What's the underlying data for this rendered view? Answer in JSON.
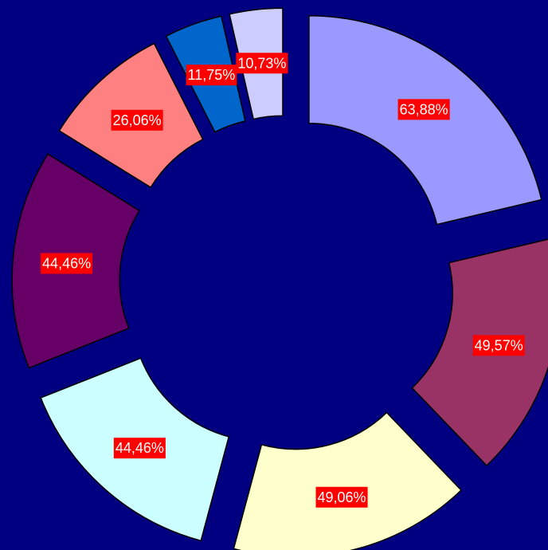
{
  "chart_data": {
    "type": "donut",
    "values": [
      63.88,
      49.57,
      49.06,
      44.46,
      44.46,
      26.06,
      11.75,
      10.73
    ],
    "value_labels": [
      "63,88%",
      "49,57%",
      "49,06%",
      "44,46%",
      "44,46%",
      "26,06%",
      "11,75%",
      "10,73%"
    ],
    "colors": [
      "#9999ff",
      "#993366",
      "#ffffcc",
      "#ccffff",
      "#660066",
      "#ff8080",
      "#0066cc",
      "#ccccff"
    ],
    "background": "#000080",
    "label_background": "#ff0000"
  }
}
